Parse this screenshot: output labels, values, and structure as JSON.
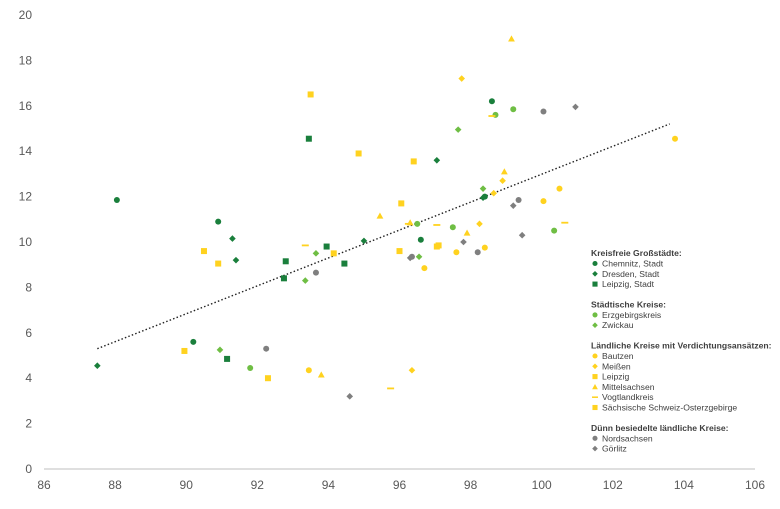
{
  "colors": {
    "dark_green": "#1a7f3c",
    "light_green": "#6fbe44",
    "yellow": "#ffd21f",
    "gray": "#7f7f7f",
    "trend": "#222222",
    "axis": "#bfbfbf"
  },
  "chart_data": {
    "type": "scatter",
    "xlim": [
      86,
      106
    ],
    "ylim": [
      0,
      20
    ],
    "x_ticks": [
      86,
      88,
      90,
      92,
      94,
      96,
      98,
      100,
      102,
      104,
      106
    ],
    "y_ticks": [
      0,
      2,
      4,
      6,
      8,
      10,
      12,
      14,
      16,
      18,
      20
    ],
    "grid": false,
    "legend_position": "right",
    "trendline": {
      "style": "dotted",
      "from": [
        87.5,
        5.3
      ],
      "to": [
        103.6,
        15.2
      ]
    },
    "groups": [
      {
        "heading": "Kreisfreie Großstädte:",
        "series": [
          {
            "name": "Chemnitz, Stadt",
            "marker": "circle",
            "color": "#1a7f3c",
            "points": [
              [
                88.05,
                11.85
              ],
              [
                90.9,
                10.9
              ],
              [
                90.2,
                5.6
              ],
              [
                96.6,
                10.1
              ],
              [
                98.6,
                16.2
              ],
              [
                98.4,
                12.0
              ]
            ]
          },
          {
            "name": "Dresden, Stadt",
            "marker": "diamond",
            "color": "#1a7f3c",
            "points": [
              [
                87.5,
                4.55
              ],
              [
                91.3,
                10.15
              ],
              [
                91.4,
                9.2
              ],
              [
                95.0,
                10.05
              ],
              [
                97.05,
                13.6
              ],
              [
                98.35,
                11.95
              ]
            ]
          },
          {
            "name": "Leipzig, Stadt",
            "marker": "square",
            "color": "#1a7f3c",
            "points": [
              [
                93.45,
                14.55
              ],
              [
                92.8,
                9.15
              ],
              [
                92.75,
                8.4
              ],
              [
                93.95,
                9.8
              ],
              [
                94.45,
                9.05
              ],
              [
                91.15,
                4.85
              ]
            ]
          }
        ]
      },
      {
        "heading": "Städtische Kreise:",
        "series": [
          {
            "name": "Erzgebirgskreis",
            "marker": "circle",
            "color": "#6fbe44",
            "points": [
              [
                91.8,
                4.45
              ],
              [
                96.5,
                10.8
              ],
              [
                97.5,
                10.65
              ],
              [
                98.7,
                15.6
              ],
              [
                99.2,
                15.85
              ],
              [
                100.35,
                10.5
              ]
            ]
          },
          {
            "name": "Zwickau",
            "marker": "diamond",
            "color": "#6fbe44",
            "points": [
              [
                90.95,
                5.25
              ],
              [
                93.35,
                8.3
              ],
              [
                93.65,
                9.5
              ],
              [
                96.55,
                9.35
              ],
              [
                97.65,
                14.95
              ],
              [
                98.35,
                12.35
              ]
            ]
          }
        ]
      },
      {
        "heading": "Ländliche Kreise mit Verdichtungsansätzen:",
        "series": [
          {
            "name": "Bautzen",
            "marker": "circle",
            "color": "#ffd21f",
            "points": [
              [
                93.45,
                4.35
              ],
              [
                96.7,
                8.85
              ],
              [
                97.6,
                9.55
              ],
              [
                98.4,
                9.75
              ],
              [
                100.05,
                11.8
              ],
              [
                100.5,
                12.35
              ],
              [
                103.75,
                14.55
              ]
            ]
          },
          {
            "name": "Meißen",
            "marker": "diamond",
            "color": "#ffd21f",
            "points": [
              [
                96.35,
                4.35
              ],
              [
                97.75,
                17.2
              ],
              [
                98.25,
                10.8
              ],
              [
                98.65,
                12.15
              ],
              [
                98.9,
                12.7
              ]
            ]
          },
          {
            "name": "Leipzig",
            "marker": "square",
            "color": "#ffd21f",
            "points": [
              [
                92.3,
                4.0
              ],
              [
                94.15,
                9.5
              ],
              [
                94.85,
                13.9
              ],
              [
                96.0,
                9.6
              ],
              [
                96.4,
                13.55
              ],
              [
                97.05,
                9.8
              ]
            ]
          },
          {
            "name": "Mittelsachsen",
            "marker": "triangle",
            "color": "#ffd21f",
            "points": [
              [
                93.8,
                4.15
              ],
              [
                95.45,
                11.15
              ],
              [
                96.3,
                10.85
              ],
              [
                97.9,
                10.4
              ],
              [
                98.95,
                13.1
              ],
              [
                99.15,
                18.95
              ]
            ]
          },
          {
            "name": "Vogtlandkreis",
            "marker": "dash",
            "color": "#ffd21f",
            "points": [
              [
                93.35,
                9.85
              ],
              [
                95.75,
                3.55
              ],
              [
                96.25,
                10.8
              ],
              [
                97.05,
                10.75
              ],
              [
                98.6,
                15.55
              ],
              [
                100.65,
                10.85
              ]
            ]
          },
          {
            "name": "Sächsische Schweiz-Osterzgebirge",
            "marker": "square",
            "color": "#ffd21f",
            "points": [
              [
                89.95,
                5.2
              ],
              [
                90.5,
                9.6
              ],
              [
                90.9,
                9.05
              ],
              [
                93.5,
                16.5
              ],
              [
                96.05,
                11.7
              ],
              [
                97.1,
                9.85
              ]
            ]
          }
        ]
      },
      {
        "heading": "Dünn besiedelte ländliche Kreise:",
        "series": [
          {
            "name": "Nordsachsen",
            "marker": "circle",
            "color": "#7f7f7f",
            "points": [
              [
                92.25,
                5.3
              ],
              [
                93.65,
                8.65
              ],
              [
                96.35,
                9.35
              ],
              [
                98.2,
                9.55
              ],
              [
                99.35,
                11.85
              ],
              [
                100.05,
                15.75
              ]
            ]
          },
          {
            "name": "Görlitz",
            "marker": "diamond",
            "color": "#7f7f7f",
            "points": [
              [
                94.6,
                3.2
              ],
              [
                96.3,
                9.3
              ],
              [
                97.8,
                10.0
              ],
              [
                99.2,
                11.6
              ],
              [
                99.45,
                10.3
              ],
              [
                100.95,
                15.95
              ]
            ]
          }
        ]
      }
    ]
  }
}
